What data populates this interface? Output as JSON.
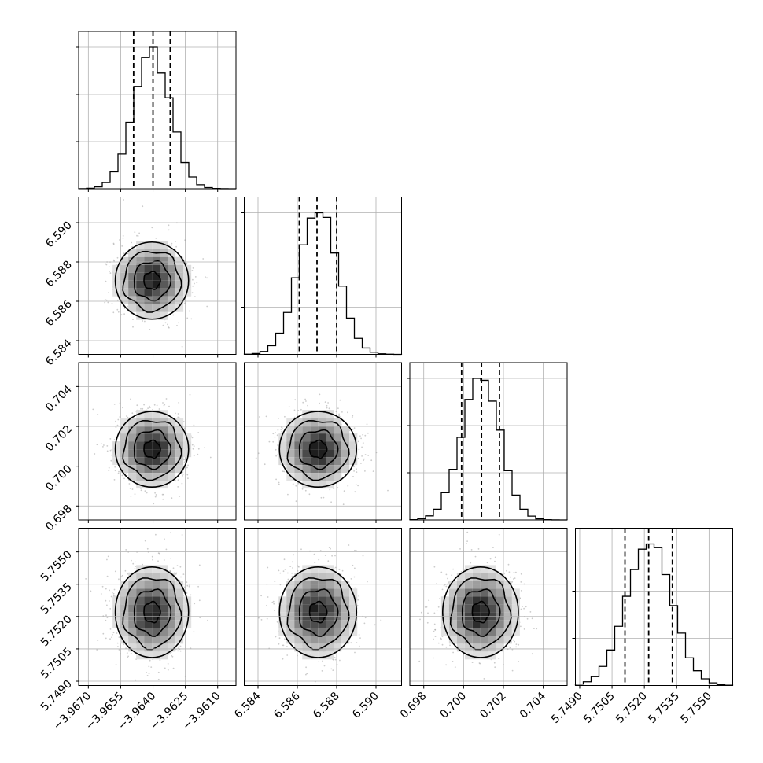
{
  "chart_data": {
    "type": "corner",
    "parameters": [
      {
        "mean": -3.96405,
        "std": 0.00085,
        "range": [
          -3.96745,
          -3.96015
        ],
        "ticks": [
          -3.967,
          -3.9655,
          -3.964,
          -3.9625,
          -3.961
        ],
        "tick_labels": [
          "−3.9670",
          "−3.9655",
          "−3.9640",
          "−3.9625",
          "−3.9610"
        ],
        "quantiles": [
          -3.9649,
          -3.964,
          -3.9632
        ]
      },
      {
        "mean": 6.58705,
        "std": 0.00098,
        "range": [
          6.5833,
          6.5913
        ],
        "ticks": [
          6.584,
          6.586,
          6.588,
          6.59
        ],
        "tick_labels": [
          "6.584",
          "6.586",
          "6.588",
          "6.590"
        ],
        "quantiles": [
          6.5861,
          6.587,
          6.588
        ]
      },
      {
        "mean": 0.70085,
        "std": 0.00095,
        "range": [
          0.6973,
          0.7052
        ],
        "ticks": [
          0.698,
          0.7,
          0.702,
          0.704
        ],
        "tick_labels": [
          "0.698",
          "0.700",
          "0.702",
          "0.704"
        ],
        "quantiles": [
          0.6999,
          0.7009,
          0.7018
        ]
      },
      {
        "mean": 5.7522,
        "std": 0.00105,
        "range": [
          5.7488,
          5.7561
        ],
        "ticks": [
          5.749,
          5.7505,
          5.752,
          5.7535,
          5.755
        ],
        "tick_labels": [
          "5.7490",
          "5.7505",
          "5.7520",
          "5.7535",
          "5.7550"
        ],
        "quantiles": [
          5.7511,
          5.7522,
          5.7533
        ]
      }
    ],
    "grid": true,
    "xlabel": "",
    "ylabel": "",
    "title": ""
  }
}
